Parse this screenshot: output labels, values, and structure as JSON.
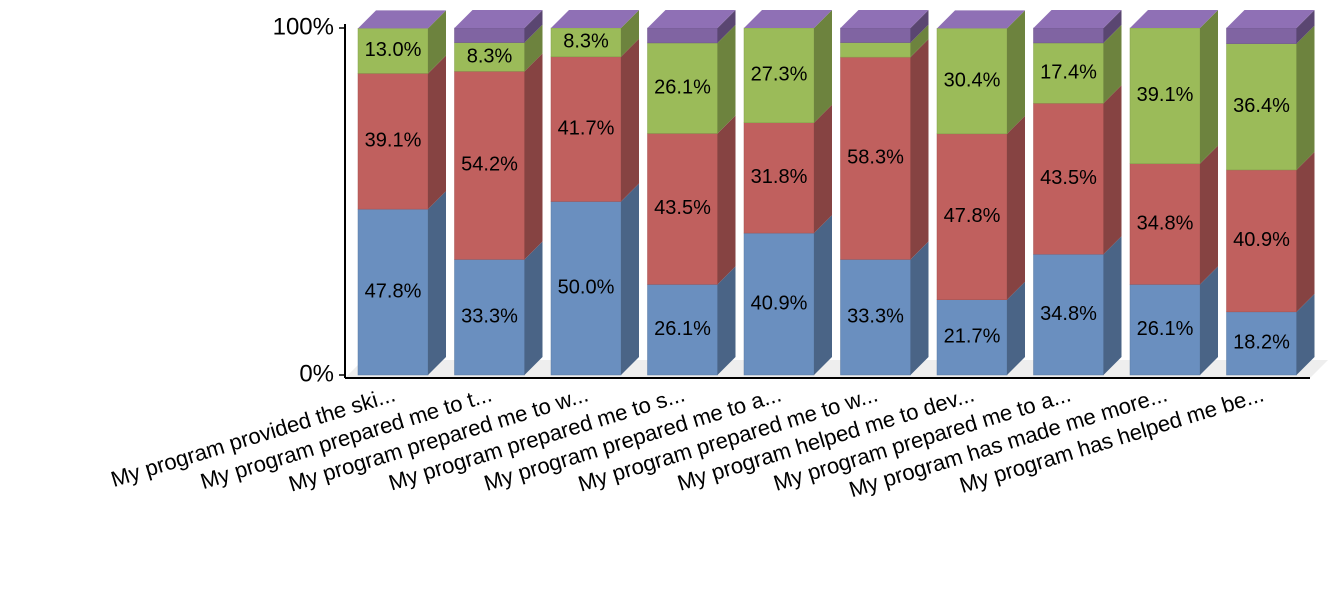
{
  "chart_data": {
    "type": "bar3d_stacked",
    "categories": [
      "My program provided the ski...",
      "My program prepared me to t...",
      "My program prepared me to w...",
      "My program prepared me to s...",
      "My program prepared me to a...",
      "My program prepared me to w...",
      "My program helped me to dev...",
      "My program prepared me to a...",
      "My program has made me more...",
      "My program has helped me be..."
    ],
    "series": [
      {
        "color": "#6a8fbf",
        "values": [
          47.8,
          33.3,
          50.0,
          26.1,
          40.9,
          33.3,
          21.7,
          34.8,
          26.1,
          18.2
        ],
        "value_labels": [
          "47.8%",
          "33.3%",
          "50.0%",
          "26.1%",
          "40.9%",
          "33.3%",
          "21.7%",
          "34.8%",
          "26.1%",
          "18.2%"
        ]
      },
      {
        "color": "#c0605e",
        "values": [
          39.1,
          54.2,
          41.7,
          43.5,
          31.8,
          58.3,
          47.8,
          43.5,
          34.8,
          40.9
        ],
        "value_labels": [
          "39.1%",
          "54.2%",
          "41.7%",
          "43.5%",
          "31.8%",
          "58.3%",
          "47.8%",
          "43.5%",
          "34.8%",
          "40.9%"
        ]
      },
      {
        "color": "#9bbb59",
        "values": [
          13.0,
          8.3,
          8.3,
          26.1,
          27.3,
          4.2,
          30.4,
          17.4,
          39.1,
          36.4
        ],
        "value_labels": [
          "13.0%",
          "8.3%",
          "8.3%",
          "26.1%",
          "27.3%",
          null,
          "30.4%",
          "17.4%",
          "39.1%",
          "36.4%"
        ]
      },
      {
        "color": "#8064a2",
        "values": [
          0,
          4.2,
          0,
          4.3,
          0,
          4.2,
          0,
          4.3,
          0,
          4.5
        ]
      }
    ],
    "ylim": [
      0,
      100
    ],
    "yticks": [
      {
        "value": 0,
        "label": "0%"
      },
      {
        "value": 100,
        "label": "100%"
      }
    ]
  }
}
